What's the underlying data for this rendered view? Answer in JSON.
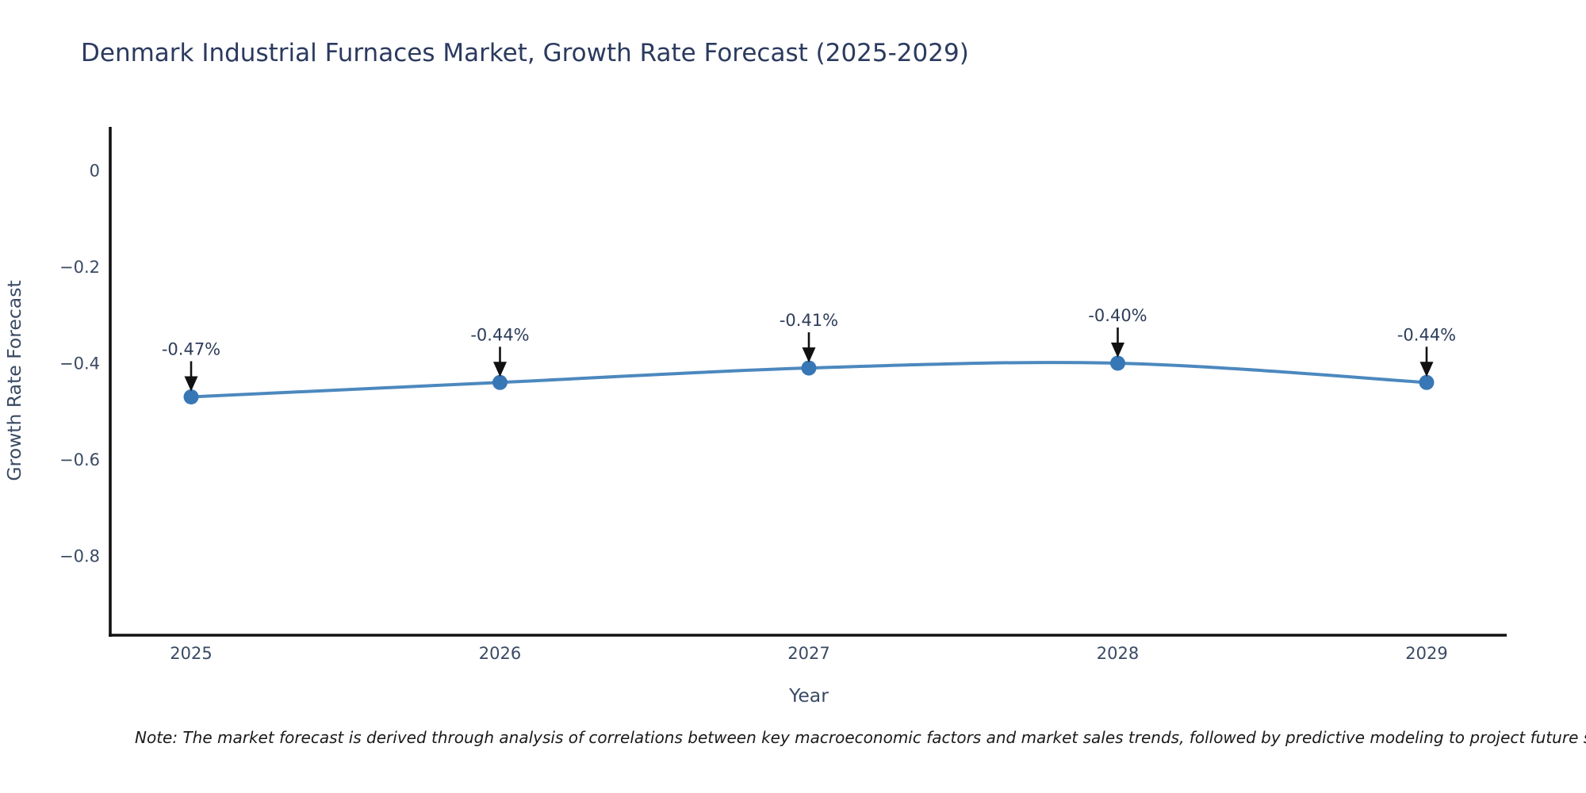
{
  "chart_data": {
    "type": "line",
    "title": "Denmark Industrial Furnaces Market, Growth Rate Forecast (2025-2029)",
    "xlabel": "Year",
    "ylabel": "Growth Rate Forecast",
    "x": [
      2025,
      2026,
      2027,
      2028,
      2029
    ],
    "series": [
      {
        "name": "Growth Rate Forecast",
        "values": [
          -0.47,
          -0.44,
          -0.41,
          -0.4,
          -0.44
        ],
        "point_labels": [
          "-0.47%",
          "-0.44%",
          "-0.41%",
          "-0.40%",
          "-0.44%"
        ]
      }
    ],
    "x_tick_labels": [
      "2025",
      "2026",
      "2027",
      "2028",
      "2029"
    ],
    "y_tick_values": [
      0,
      -0.2,
      -0.4,
      -0.6,
      -0.8
    ],
    "y_tick_labels": [
      "0",
      "−0.2",
      "−0.4",
      "−0.6",
      "−0.8"
    ],
    "ylim": [
      -0.96,
      0.09
    ],
    "xlim": [
      2024.74,
      2029.26
    ],
    "grid": false,
    "legend_position": "none",
    "line_shape": "spline",
    "annotations_have_arrows": true,
    "colors": {
      "line": "#4c88be",
      "marker": "#3877b6",
      "axis": "#111111",
      "arrow": "#111111",
      "title_text": "#2b3a5e",
      "tick_text": "#3a4a63"
    }
  },
  "note": {
    "text": "Note: The market forecast is derived through analysis of correlations between key macroeconomic factors and market sales trends, followed by predictive modeling to project future sal"
  }
}
